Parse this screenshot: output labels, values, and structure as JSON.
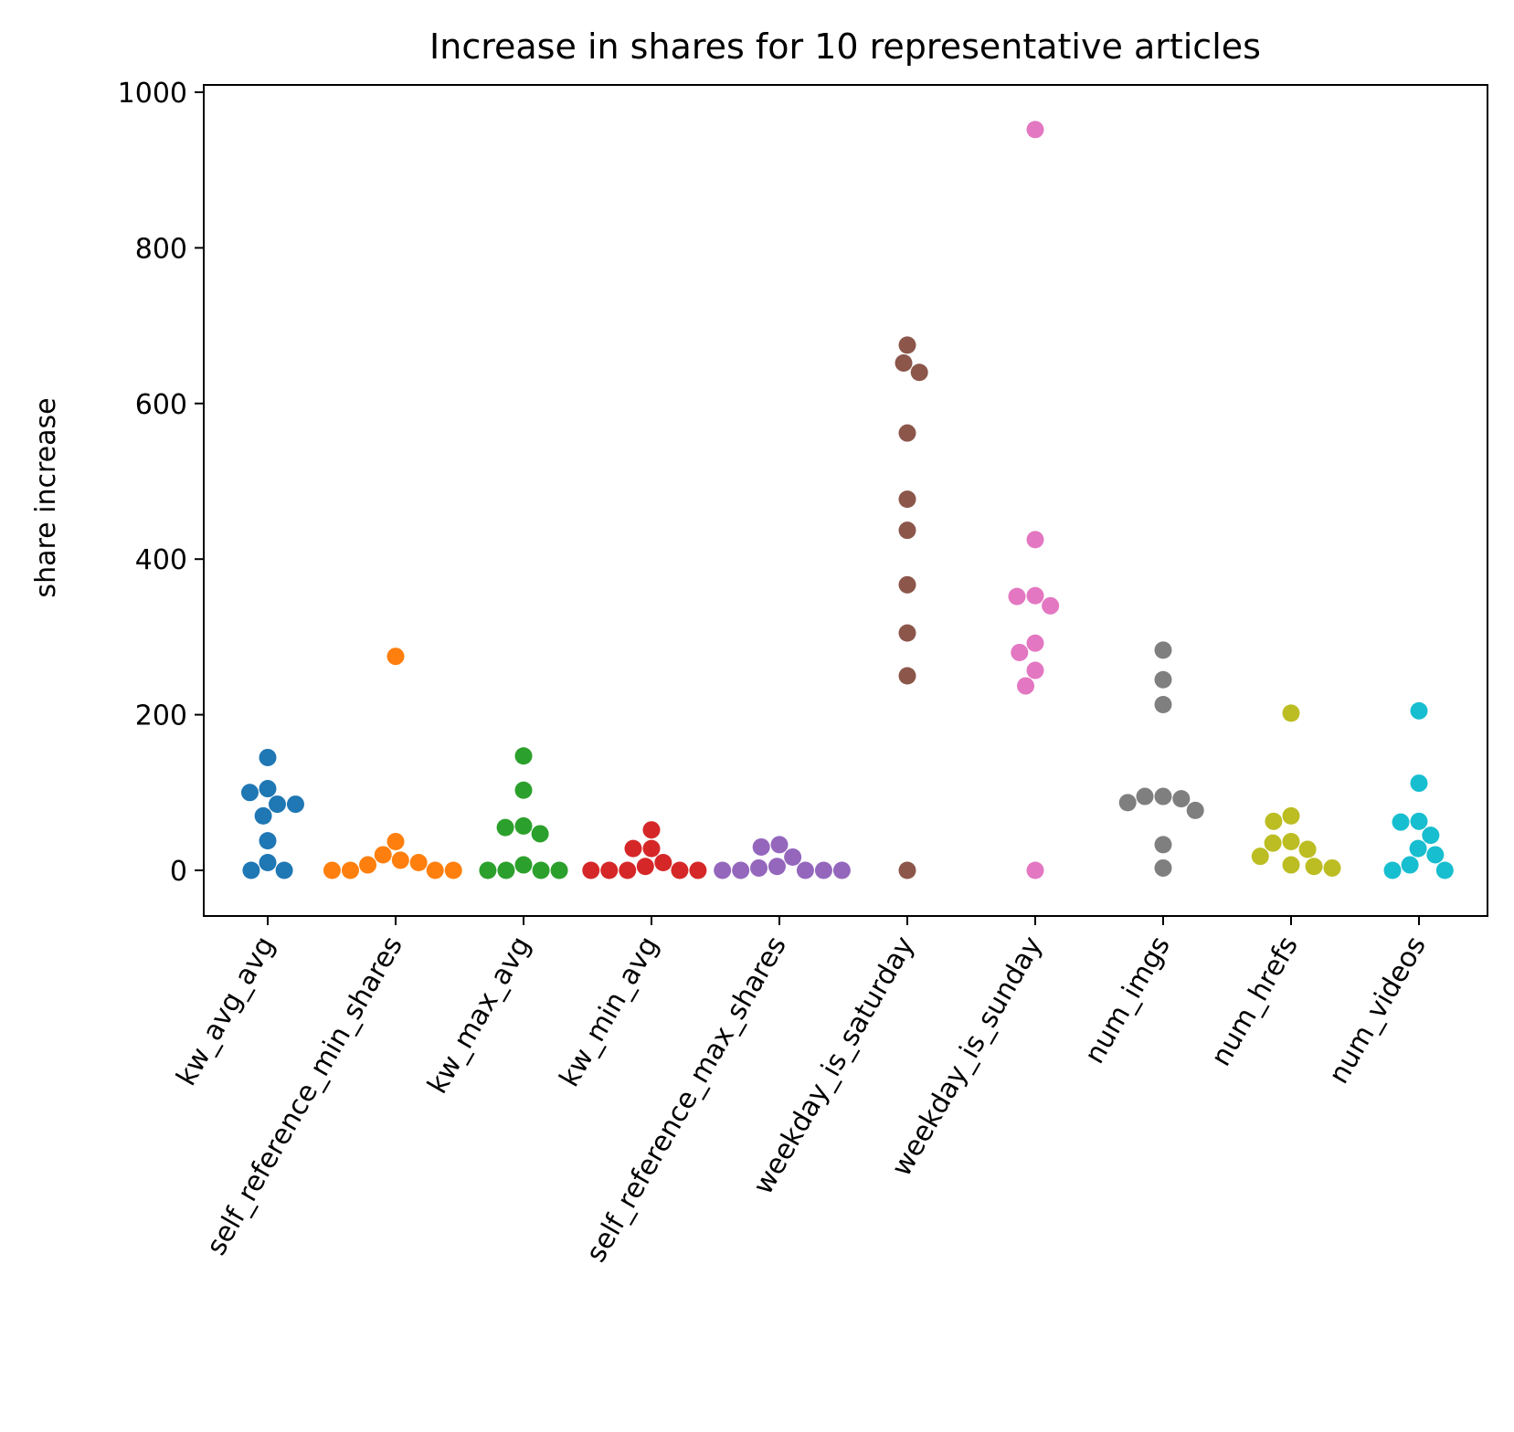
{
  "chart_data": {
    "type": "scatter",
    "title": "Increase in shares for 10 representative articles",
    "xlabel": "",
    "ylabel": "share increase",
    "ylim": [
      -60,
      1010
    ],
    "yticks": [
      0,
      200,
      400,
      600,
      800,
      1000
    ],
    "grid": false,
    "legend": "none",
    "categories": [
      "kw_avg_avg",
      "self_reference_min_shares",
      "kw_max_avg",
      "kw_min_avg",
      "self_reference_max_shares",
      "weekday_is_saturday",
      "weekday_is_sunday",
      "num_imgs",
      "num_hrefs",
      "num_videos"
    ],
    "colors": [
      "#1f77b4",
      "#ff7f0e",
      "#2ca02c",
      "#d62728",
      "#9467bd",
      "#8c564b",
      "#e377c2",
      "#7f7f7f",
      "#bcbd22",
      "#17becf"
    ],
    "series": [
      {
        "values": [
          145,
          105,
          100,
          85,
          85,
          70,
          38,
          10,
          0,
          0
        ]
      },
      {
        "values": [
          275,
          37,
          20,
          10,
          13,
          7,
          0,
          0,
          0,
          0
        ]
      },
      {
        "values": [
          147,
          103,
          55,
          57,
          47,
          7,
          0,
          0,
          0,
          0
        ]
      },
      {
        "values": [
          52,
          28,
          28,
          10,
          5,
          0,
          0,
          0,
          0,
          0
        ]
      },
      {
        "values": [
          33,
          30,
          17,
          5,
          3,
          0,
          0,
          0,
          0,
          0
        ]
      },
      {
        "values": [
          675,
          652,
          640,
          562,
          477,
          437,
          367,
          305,
          250,
          0
        ]
      },
      {
        "values": [
          952,
          425,
          352,
          353,
          340,
          292,
          280,
          257,
          237,
          0
        ]
      },
      {
        "values": [
          283,
          245,
          213,
          95,
          95,
          92,
          87,
          77,
          33,
          3
        ]
      },
      {
        "values": [
          202,
          70,
          63,
          37,
          35,
          27,
          18,
          7,
          5,
          3
        ]
      },
      {
        "values": [
          205,
          112,
          63,
          62,
          45,
          28,
          20,
          7,
          0,
          0
        ]
      }
    ]
  }
}
